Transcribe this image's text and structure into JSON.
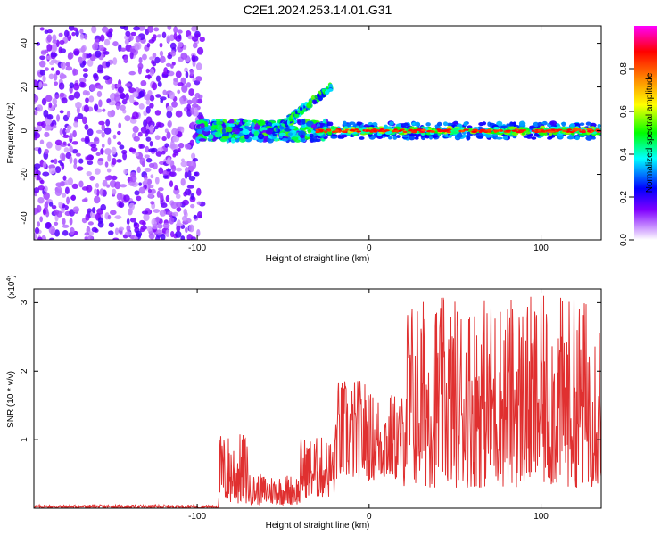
{
  "title": "C2E1.2024.253.14.01.G31",
  "chart_data": [
    {
      "type": "heatmap",
      "name": "spectrogram",
      "xlabel": "Height of straight line (km)",
      "ylabel": "Frequency (Hz)",
      "xlim": [
        -195,
        135
      ],
      "ylim": [
        -50,
        48
      ],
      "xticks": [
        -100,
        0,
        100
      ],
      "yticks": [
        40,
        20,
        0,
        -20,
        -40
      ],
      "colorbar": {
        "label": "Normalized spectral amplitude",
        "range": [
          0,
          1
        ],
        "ticks": [
          0.0,
          0.2,
          0.4,
          0.6,
          0.8
        ],
        "colormap": [
          "#ffffff",
          "#a000ff",
          "#0000ff",
          "#00ffff",
          "#00ff00",
          "#ffff00",
          "#ff8000",
          "#ff0000",
          "#ff00ff"
        ]
      },
      "features": [
        {
          "label": "noise region",
          "x_range": [
            -195,
            -97
          ],
          "freq_range": [
            -50,
            48
          ],
          "level": 0.1
        },
        {
          "label": "transition band",
          "x_range": [
            -100,
            -25
          ],
          "freq_center": 0,
          "level": 0.4
        },
        {
          "label": "rising streak",
          "x_range": [
            -55,
            -22
          ],
          "freq_range": [
            0,
            20
          ],
          "level": 0.35
        },
        {
          "label": "steady line",
          "x_range": [
            -30,
            135
          ],
          "freq_center": 0,
          "level": 0.9
        }
      ]
    },
    {
      "type": "line",
      "name": "snr",
      "xlabel": "Height of straight line (km)",
      "ylabel": "SNR (10 * v/v)",
      "scale_label": "(x10",
      "scale_exp": "4",
      "scale_close": ")",
      "xlim": [
        -195,
        135
      ],
      "ylim": [
        0,
        3.2
      ],
      "xticks": [
        -100,
        0,
        100
      ],
      "yticks": [
        1,
        2,
        3
      ],
      "color": "#e03030",
      "segments": [
        {
          "x_range": [
            -195,
            -88
          ],
          "min": 0.0,
          "max": 0.05
        },
        {
          "x_range": [
            -88,
            -70
          ],
          "min": 0.05,
          "max": 1.1
        },
        {
          "x_range": [
            -70,
            -40
          ],
          "min": 0.05,
          "max": 0.5
        },
        {
          "x_range": [
            -40,
            -20
          ],
          "min": 0.15,
          "max": 1.05
        },
        {
          "x_range": [
            -20,
            0
          ],
          "min": 0.4,
          "max": 1.9
        },
        {
          "x_range": [
            0,
            20
          ],
          "min": 0.4,
          "max": 1.7
        },
        {
          "x_range": [
            20,
            135
          ],
          "min": 0.3,
          "max": 3.1
        }
      ]
    }
  ]
}
